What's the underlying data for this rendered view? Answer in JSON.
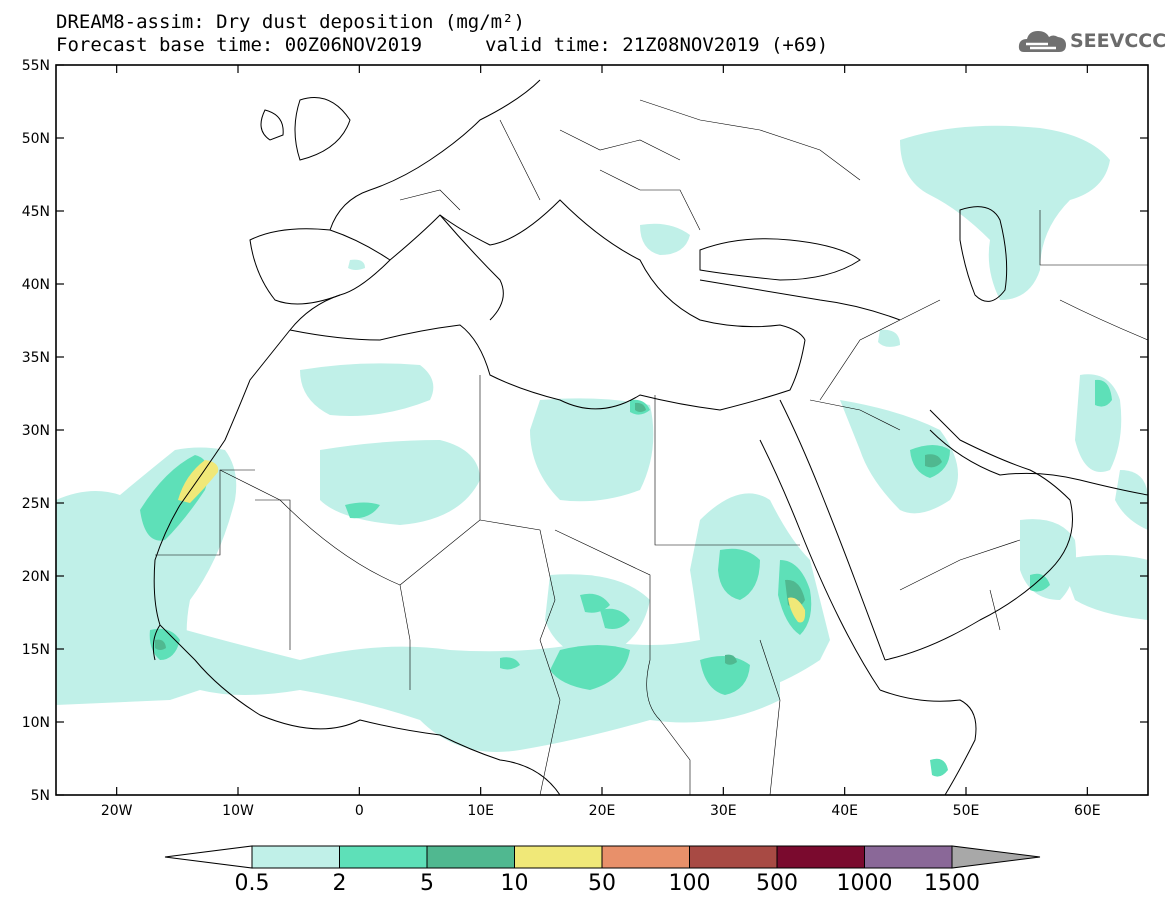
{
  "header": {
    "title_line1": "DREAM8-assim: Dry dust deposition (mg/m²)",
    "title_line2": "Forecast base time: 00Z06NOV2019",
    "title_line2_valid": "valid time: 21Z08NOV2019 (+69)",
    "logo_text": "SEEVCCC"
  },
  "map": {
    "lon_ticks": [
      "20W",
      "10W",
      "0",
      "10E",
      "20E",
      "30E",
      "40E",
      "50E",
      "60E"
    ],
    "lat_ticks": [
      "55N",
      "50N",
      "45N",
      "40N",
      "35N",
      "30N",
      "25N",
      "20N",
      "15N",
      "10N",
      "5N"
    ],
    "lon_range": [
      -25,
      65
    ],
    "lat_range": [
      5,
      55
    ]
  },
  "legend": {
    "labels": [
      "0.5",
      "2",
      "5",
      "10",
      "50",
      "100",
      "500",
      "1000",
      "1500"
    ],
    "colors": [
      "#c0f0e8",
      "#5ee0b8",
      "#50b890",
      "#f0e878",
      "#e8906a",
      "#a84a44",
      "#7a0a2e",
      "#8a6898"
    ],
    "overflow_color": "#a8a8a8",
    "underflow_color": "#ffffff"
  },
  "colors": {
    "level_0_5": "#c0f0e8",
    "level_2": "#5ee0b8",
    "level_5": "#50b890",
    "level_10": "#f0e878"
  }
}
